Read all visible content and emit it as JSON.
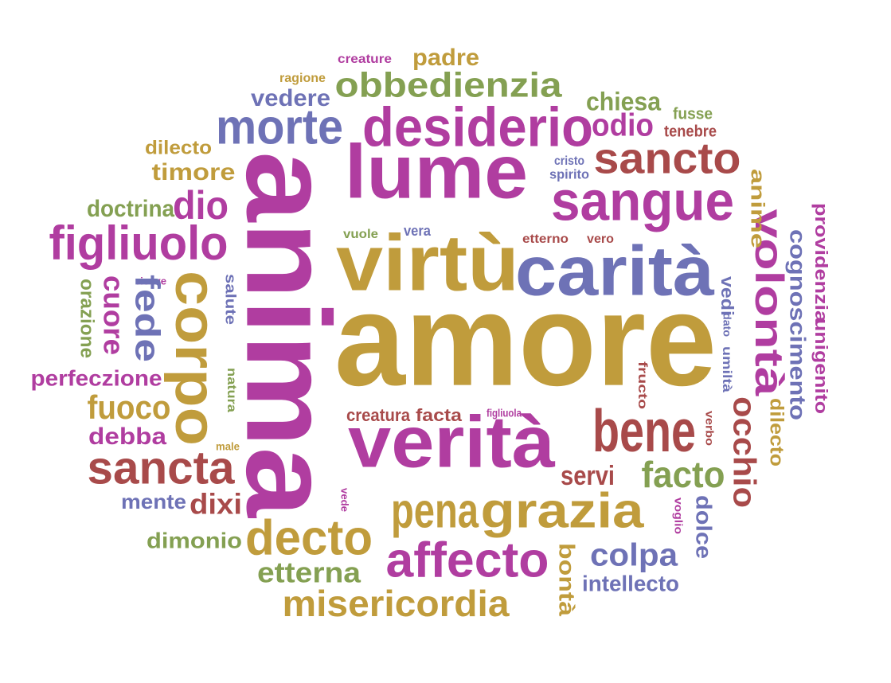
{
  "palette": {
    "magenta": "#b03da0",
    "gold": "#c09c3c",
    "blue": "#6e72b6",
    "red": "#a84a4a",
    "green": "#84a052"
  },
  "words": [
    {
      "text": "amore",
      "color": "gold"
    },
    {
      "text": "anima",
      "color": "magenta"
    },
    {
      "text": "verità",
      "color": "magenta"
    },
    {
      "text": "virtù",
      "color": "gold"
    },
    {
      "text": "carità",
      "color": "blue"
    },
    {
      "text": "lume",
      "color": "magenta"
    },
    {
      "text": "desiderio",
      "color": "magenta"
    },
    {
      "text": "sangue",
      "color": "magenta"
    },
    {
      "text": "corpo",
      "color": "gold"
    },
    {
      "text": "bene",
      "color": "red"
    },
    {
      "text": "pena",
      "color": "gold"
    },
    {
      "text": "grazia",
      "color": "gold"
    },
    {
      "text": "affecto",
      "color": "magenta"
    },
    {
      "text": "decto",
      "color": "gold"
    },
    {
      "text": "misericordia",
      "color": "gold"
    },
    {
      "text": "morte",
      "color": "blue"
    },
    {
      "text": "obbedienzia",
      "color": "green"
    },
    {
      "text": "sancto",
      "color": "red"
    },
    {
      "text": "figliuolo",
      "color": "magenta"
    },
    {
      "text": "sancta",
      "color": "red"
    },
    {
      "text": "volontà",
      "color": "magenta"
    },
    {
      "text": "fede",
      "color": "blue"
    },
    {
      "text": "dio",
      "color": "magenta"
    },
    {
      "text": "cuore",
      "color": "magenta"
    },
    {
      "text": "fuoco",
      "color": "gold"
    },
    {
      "text": "occhio",
      "color": "red"
    },
    {
      "text": "facto",
      "color": "green"
    },
    {
      "text": "colpa",
      "color": "blue"
    },
    {
      "text": "etterna",
      "color": "green"
    },
    {
      "text": "dixi",
      "color": "red"
    },
    {
      "text": "servi",
      "color": "red"
    },
    {
      "text": "odio",
      "color": "magenta"
    },
    {
      "text": "chiesa",
      "color": "green"
    },
    {
      "text": "padre",
      "color": "gold"
    },
    {
      "text": "vedere",
      "color": "blue"
    },
    {
      "text": "timore",
      "color": "gold"
    },
    {
      "text": "doctrina",
      "color": "green"
    },
    {
      "text": "perfeczione",
      "color": "magenta"
    },
    {
      "text": "debba",
      "color": "magenta"
    },
    {
      "text": "mente",
      "color": "blue"
    },
    {
      "text": "dimonio",
      "color": "green"
    },
    {
      "text": "intellecto",
      "color": "blue"
    },
    {
      "text": "bontà",
      "color": "gold"
    },
    {
      "text": "dolce",
      "color": "blue"
    },
    {
      "text": "cognoscimento",
      "color": "blue"
    },
    {
      "text": "providenzia",
      "color": "magenta"
    },
    {
      "text": "unigenito",
      "color": "magenta"
    },
    {
      "text": "divina",
      "color": "magenta"
    },
    {
      "text": "anime",
      "color": "gold"
    },
    {
      "text": "dilecto",
      "color": "gold"
    },
    {
      "text": "orazione",
      "color": "green"
    },
    {
      "text": "creatura",
      "color": "red"
    },
    {
      "text": "facta",
      "color": "red"
    },
    {
      "text": "fusse",
      "color": "green"
    },
    {
      "text": "tenebre",
      "color": "red"
    },
    {
      "text": "creature",
      "color": "magenta"
    },
    {
      "text": "ragione",
      "color": "gold"
    },
    {
      "text": "cristo",
      "color": "blue"
    },
    {
      "text": "spirito",
      "color": "blue"
    },
    {
      "text": "vuole",
      "color": "green"
    },
    {
      "text": "vera",
      "color": "blue"
    },
    {
      "text": "etterno",
      "color": "red"
    },
    {
      "text": "vero",
      "color": "red"
    },
    {
      "text": "riceve",
      "color": "magenta"
    },
    {
      "text": "salute",
      "color": "blue"
    },
    {
      "text": "natura",
      "color": "green"
    },
    {
      "text": "male",
      "color": "gold"
    },
    {
      "text": "vedi",
      "color": "blue"
    },
    {
      "text": "dato",
      "color": "blue"
    },
    {
      "text": "umiltà",
      "color": "blue"
    },
    {
      "text": "fructo",
      "color": "red"
    },
    {
      "text": "figliuola",
      "color": "magenta"
    },
    {
      "text": "verbo",
      "color": "red"
    },
    {
      "text": "vede",
      "color": "magenta"
    },
    {
      "text": "voglio",
      "color": "magenta"
    }
  ]
}
